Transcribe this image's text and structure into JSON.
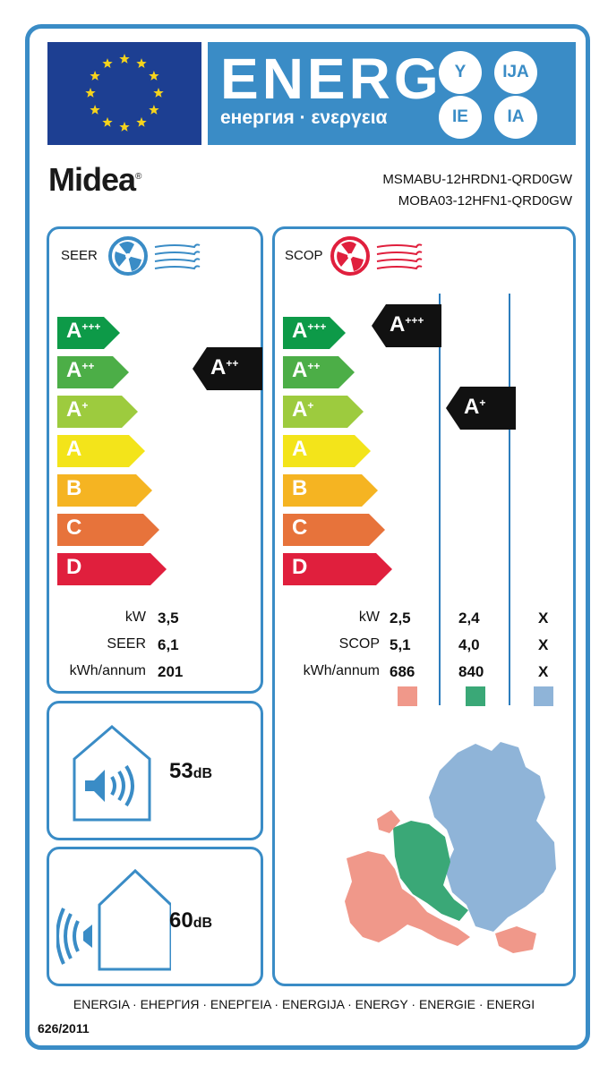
{
  "header": {
    "title": "ENERG",
    "subtitle": "енергия · ενεργεια",
    "bubbles": [
      "Y",
      "IJA",
      "IE",
      "IA"
    ]
  },
  "brand": {
    "name": "Midea",
    "trademark": "®"
  },
  "models": {
    "indoor": "MSMABU-12HRDN1-QRD0GW",
    "outdoor": "MOBA03-12HFN1-QRD0GW"
  },
  "colors": {
    "frame": "#3a8cc6",
    "flag": "#1d3f92",
    "warmer": "#f0988a",
    "average": "#3aa877",
    "colder": "#8fb4d8"
  },
  "classes": [
    {
      "base": "A",
      "sup": "+++",
      "color": "#0d9a48"
    },
    {
      "base": "A",
      "sup": "++",
      "color": "#4cae47"
    },
    {
      "base": "A",
      "sup": "+",
      "color": "#9dcb3e"
    },
    {
      "base": "A",
      "sup": "",
      "color": "#f3e41a"
    },
    {
      "base": "B",
      "sup": "",
      "color": "#f5b422"
    },
    {
      "base": "C",
      "sup": "",
      "color": "#e7733b"
    },
    {
      "base": "D",
      "sup": "",
      "color": "#e01f3d"
    }
  ],
  "cooling": {
    "label": "SEER",
    "rating": {
      "base": "A",
      "sup": "++"
    },
    "rows": [
      {
        "label": "kW",
        "value": "3,5"
      },
      {
        "label": "SEER",
        "value": "6,1"
      },
      {
        "label": "kWh/annum",
        "value": "201"
      }
    ]
  },
  "heating": {
    "label": "SCOP",
    "ratings": [
      {
        "base": "A",
        "sup": "+++"
      },
      {
        "base": "A",
        "sup": "+"
      }
    ],
    "rows": [
      {
        "label": "kW",
        "values": [
          "2,5",
          "2,4",
          "X"
        ]
      },
      {
        "label": "SCOP",
        "values": [
          "5,1",
          "4,0",
          "X"
        ]
      },
      {
        "label": "kWh/annum",
        "values": [
          "686",
          "840",
          "X"
        ]
      }
    ]
  },
  "noise": {
    "indoor": {
      "value": "53",
      "unit": "dB"
    },
    "outdoor": {
      "value": "60",
      "unit": "dB"
    }
  },
  "footer": {
    "languages": "ENERGIA · ЕНЕРГИЯ · ΕΝΕΡΓΕΙΑ · ENERGIJA · ENERGY · ENERGIE · ENERGI",
    "regulation": "626/2011"
  }
}
